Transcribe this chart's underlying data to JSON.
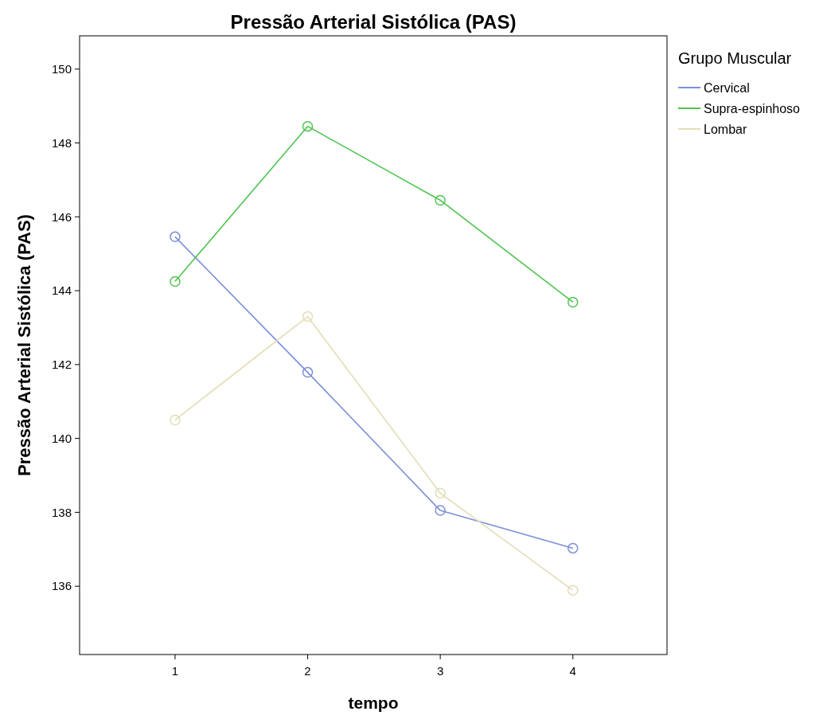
{
  "chart_data": {
    "type": "line",
    "title": "Pressão Arterial Sistólica (PAS)",
    "xlabel": "tempo",
    "ylabel": "Pressão Arterial Sistólica (PAS)",
    "legend_title": "Grupo Muscular",
    "x": [
      1,
      2,
      3,
      4
    ],
    "xlim": [
      0.28,
      4.71
    ],
    "xticks": [
      1,
      2,
      3,
      4
    ],
    "ylim": [
      134.15,
      150.9
    ],
    "yticks": [
      136,
      138,
      140,
      142,
      144,
      146,
      148,
      150
    ],
    "grid": false,
    "legend": "top right",
    "marker": "circle",
    "line_style": "solid",
    "series": [
      {
        "name": "Cervical",
        "color": "#7b8fd6",
        "values": [
          145.46,
          141.79,
          138.05,
          137.03
        ]
      },
      {
        "name": "Supra-espinhoso",
        "color": "#4fc44f",
        "values": [
          144.25,
          148.45,
          146.45,
          143.69
        ]
      },
      {
        "name": "Lombar",
        "color": "#e3ddb5",
        "values": [
          140.5,
          143.3,
          138.52,
          135.89
        ]
      }
    ]
  }
}
